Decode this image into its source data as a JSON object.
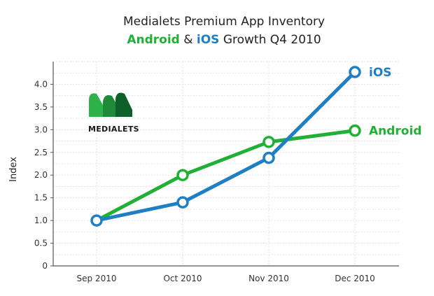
{
  "chart_data": {
    "type": "line",
    "title": {
      "line1": "Medialets Premium App Inventory",
      "line2_part_android": "Android",
      "line2_part_amp": " & ",
      "line2_part_ios": "iOS",
      "line2_part_rest": " Growth Q4 2010"
    },
    "xlabel": "",
    "ylabel": "Index",
    "categories": [
      "Sep 2010",
      "Oct 2010",
      "Nov 2010",
      "Dec 2010"
    ],
    "ylim": [
      0,
      4.5
    ],
    "yticks": [
      "0",
      "0.5",
      "1.0",
      "1.5",
      "2.0",
      "2.5",
      "3.0",
      "3.5",
      "4.0"
    ],
    "grid": true,
    "series": [
      {
        "name": "Android",
        "color": "#1fb035",
        "values": [
          1.0,
          2.0,
          2.73,
          2.98
        ]
      },
      {
        "name": "iOS",
        "color": "#1f7fc4",
        "values": [
          1.0,
          1.4,
          2.38,
          4.27
        ]
      }
    ]
  },
  "logo": {
    "text": "MEDIALETS",
    "colors": [
      "#2db34a",
      "#1e8a3a",
      "#0f5f2a"
    ]
  }
}
